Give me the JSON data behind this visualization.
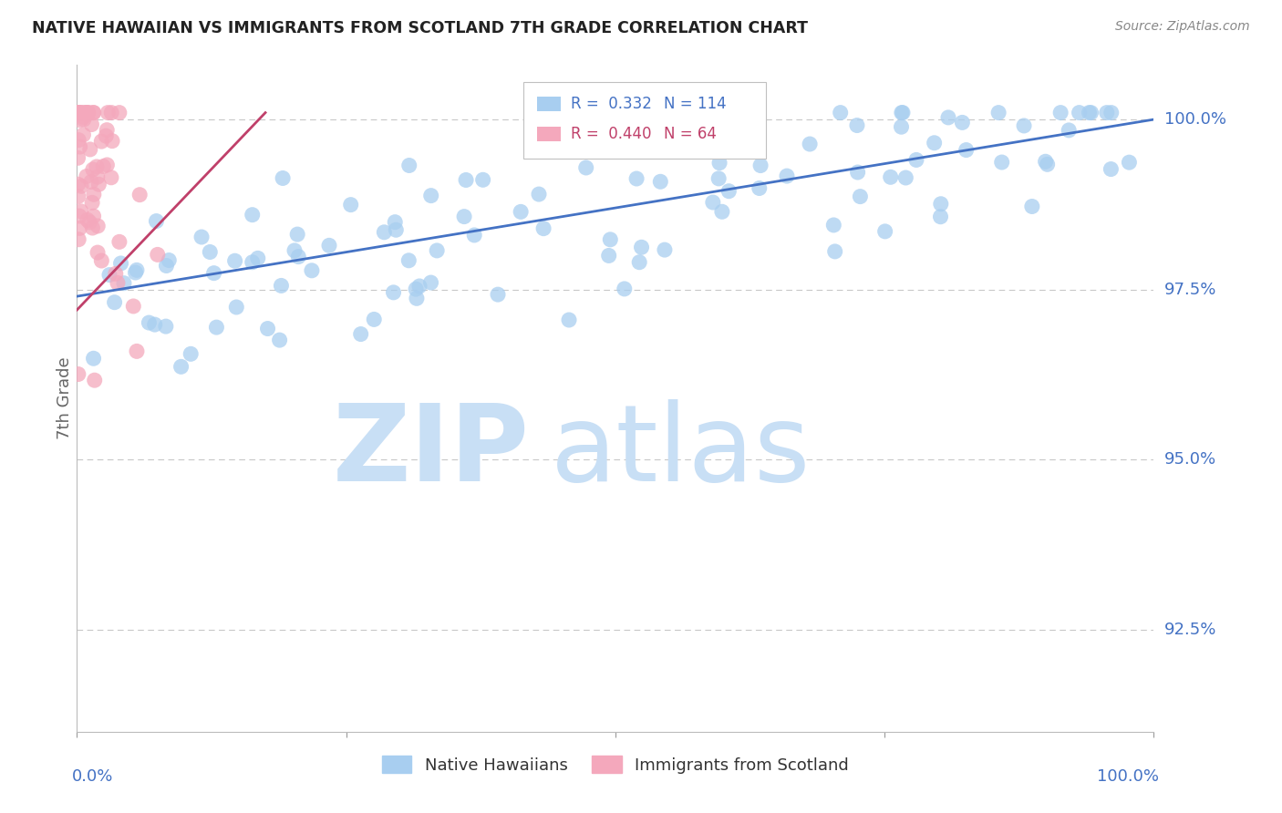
{
  "title": "NATIVE HAWAIIAN VS IMMIGRANTS FROM SCOTLAND 7TH GRADE CORRELATION CHART",
  "source": "Source: ZipAtlas.com",
  "ylabel": "7th Grade",
  "ytick_labels": [
    "92.5%",
    "95.0%",
    "97.5%",
    "100.0%"
  ],
  "ytick_values": [
    0.925,
    0.95,
    0.975,
    1.0
  ],
  "xlim": [
    0.0,
    1.0
  ],
  "ylim": [
    0.91,
    1.008
  ],
  "blue_color": "#A8CEF0",
  "pink_color": "#F4A8BC",
  "line_color": "#4472C4",
  "pink_line_color": "#C0406A",
  "legend_blue_r": "0.332",
  "legend_blue_n": "114",
  "legend_pink_r": "0.440",
  "legend_pink_n": "64",
  "background_color": "#ffffff",
  "grid_color": "#c8c8c8",
  "title_color": "#222222",
  "tick_label_color": "#4472C4",
  "watermark_zip_color": "#C8DFF5",
  "watermark_atlas_color": "#C8DFF5",
  "figsize": [
    14.06,
    8.92
  ],
  "dpi": 100
}
